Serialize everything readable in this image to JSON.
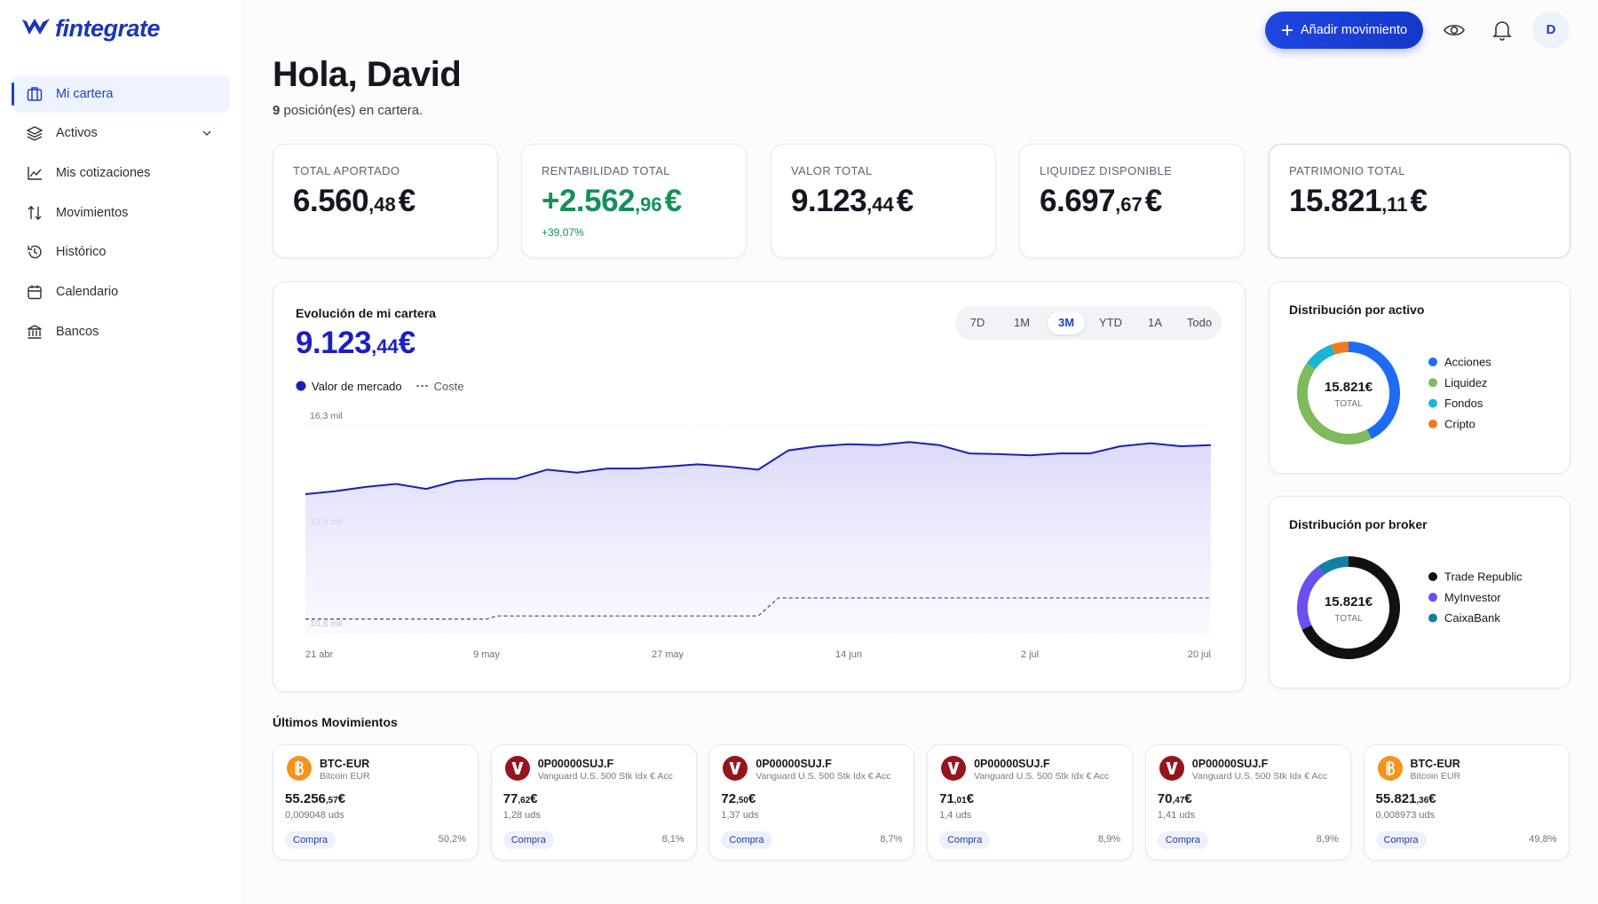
{
  "sidebar": {
    "logo": "fintegrate",
    "nav": [
      {
        "label": "Mi cartera",
        "active": true
      },
      {
        "label": "Activos",
        "expandable": true
      },
      {
        "label": "Mis cotizaciones"
      },
      {
        "label": "Movimientos"
      },
      {
        "label": "Histórico"
      },
      {
        "label": "Calendario"
      },
      {
        "label": "Bancos"
      }
    ]
  },
  "header": {
    "button": "Añadir movimiento",
    "avatar": "D"
  },
  "greeting": {
    "title": "Hola, David",
    "count": "9",
    "subtitle": "posición(es) en cartera."
  },
  "kpis": [
    {
      "label": "TOTAL APORTADO",
      "int": "6.560",
      "dec": ",48",
      "cur": "€"
    },
    {
      "label": "RENTABILIDAD TOTAL",
      "int": "+2.562",
      "dec": ",96",
      "cur": "€",
      "change": "+39,07%",
      "positive": true
    },
    {
      "label": "VALOR TOTAL",
      "int": "9.123",
      "dec": ",44",
      "cur": "€"
    },
    {
      "label": "LIQUIDEZ DISPONIBLE",
      "int": "6.697",
      "dec": ",67",
      "cur": "€"
    },
    {
      "label": "PATRIMONIO TOTAL",
      "int": "15.821",
      "dec": ",11",
      "cur": "€",
      "highlight": true
    }
  ],
  "portfolio": {
    "title": "Evolución de mi cartera",
    "int": "9.123",
    "dec": ",44",
    "cur": "€",
    "ranges": [
      "7D",
      "1M",
      "3M",
      "YTD",
      "1A",
      "Todo"
    ],
    "active_range": 2
  },
  "chart_data": [
    {
      "type": "line",
      "series": [
        {
          "name": "Valor de mercado",
          "color": "#1b1fb8",
          "area": true,
          "x": [
            0,
            3,
            6,
            9,
            12,
            15,
            18,
            21,
            24,
            27,
            30,
            33,
            36,
            39,
            42,
            45,
            48,
            51,
            54,
            57,
            60,
            63,
            66,
            69,
            72,
            75,
            78,
            81,
            84,
            87,
            90
          ],
          "values": [
            14.49,
            14.57,
            14.68,
            14.76,
            14.63,
            14.84,
            14.9,
            14.9,
            15.14,
            15.06,
            15.17,
            15.17,
            15.22,
            15.28,
            15.22,
            15.14,
            15.65,
            15.76,
            15.81,
            15.79,
            15.87,
            15.79,
            15.57,
            15.55,
            15.52,
            15.57,
            15.57,
            15.76,
            15.84,
            15.76,
            15.79
          ]
        },
        {
          "name": "Coste",
          "color": "#555a66",
          "dash": true,
          "x": [
            0,
            18,
            19,
            45,
            47,
            90
          ],
          "values": [
            11.18,
            11.18,
            11.26,
            11.26,
            11.74,
            11.74
          ]
        }
      ],
      "xlim": [
        0,
        90
      ],
      "xticks": [
        {
          "value": 0,
          "label": "21 abr"
        },
        {
          "value": 18,
          "label": "9 may"
        },
        {
          "value": 36,
          "label": "27 may"
        },
        {
          "value": 54,
          "label": "14 jun"
        },
        {
          "value": 72,
          "label": "2 jul"
        },
        {
          "value": 90,
          "label": "20 jul"
        }
      ],
      "ylim": [
        10.8,
        16.3
      ],
      "yticks": [
        {
          "value": 16.3,
          "label": "16,3 mil"
        },
        {
          "value": 13.5,
          "label": "13,5 mil"
        },
        {
          "value": 10.8,
          "label": "10,8 mil"
        }
      ],
      "grid": true
    },
    {
      "type": "pie",
      "title": "Distribución por activo",
      "center_value": "15.821€",
      "center_label": "TOTAL",
      "categories": [
        "Acciones",
        "Liquidez",
        "Fondos",
        "Cripto"
      ],
      "values": [
        42.6,
        42.3,
        9.6,
        5.5
      ],
      "colors": [
        "#1e6cf2",
        "#7fba5c",
        "#19b5d6",
        "#f07a1f"
      ]
    },
    {
      "type": "pie",
      "title": "Distribución por broker",
      "center_value": "15.821€",
      "center_label": "TOTAL",
      "categories": [
        "Trade Republic",
        "MyInvestor",
        "CaixaBank"
      ],
      "values": [
        68,
        22,
        10
      ],
      "colors": [
        "#111111",
        "#6b4ff0",
        "#127fa3"
      ]
    }
  ],
  "movements": {
    "title": "Últimos Movimientos",
    "items": [
      {
        "icon": "bitcoin",
        "ticker": "BTC-EUR",
        "name": "Bitcoin EUR",
        "int": "55.256",
        "dec": ",57",
        "cur": "€",
        "units": "0,009048 uds",
        "action": "Compra",
        "pct": "50,2%"
      },
      {
        "icon": "vanguard",
        "ticker": "0P00000SUJ.F",
        "name": "Vanguard U.S. 500 Stk Idx € Acc",
        "int": "77",
        "dec": ",62",
        "cur": "€",
        "units": "1,28 uds",
        "action": "Compra",
        "pct": "8,1%"
      },
      {
        "icon": "vanguard",
        "ticker": "0P00000SUJ.F",
        "name": "Vanguard U.S. 500 Stk Idx € Acc",
        "int": "72",
        "dec": ",50",
        "cur": "€",
        "units": "1,37 uds",
        "action": "Compra",
        "pct": "8,7%"
      },
      {
        "icon": "vanguard",
        "ticker": "0P00000SUJ.F",
        "name": "Vanguard U.S. 500 Stk Idx € Acc",
        "int": "71",
        "dec": ",01",
        "cur": "€",
        "units": "1,4 uds",
        "action": "Compra",
        "pct": "8,9%"
      },
      {
        "icon": "vanguard",
        "ticker": "0P00000SUJ.F",
        "name": "Vanguard U.S. 500 Stk Idx € Acc",
        "int": "70",
        "dec": ",47",
        "cur": "€",
        "units": "1,41 uds",
        "action": "Compra",
        "pct": "8,9%"
      },
      {
        "icon": "bitcoin",
        "ticker": "BTC-EUR",
        "name": "Bitcoin EUR",
        "int": "55.821",
        "dec": ",36",
        "cur": "€",
        "units": "0,008973 uds",
        "action": "Compra",
        "pct": "49,8%"
      }
    ]
  }
}
